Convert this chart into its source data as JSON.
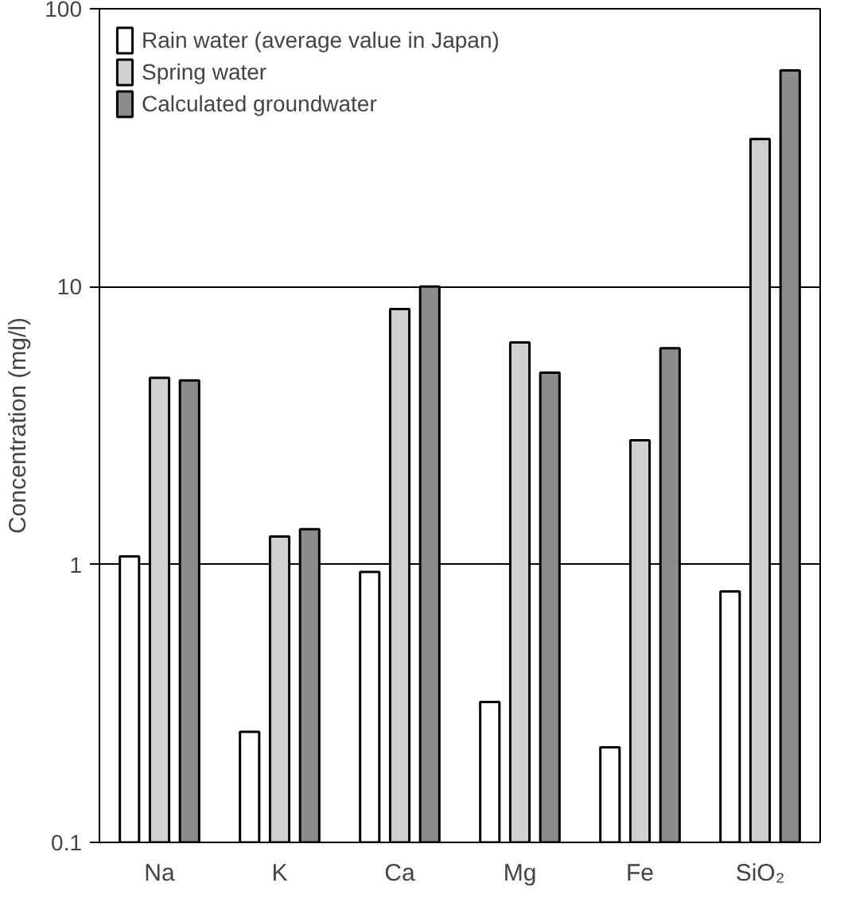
{
  "chart_data": {
    "type": "bar",
    "ylabel": "Concentration (mg/l)",
    "categories": [
      "Na",
      "K",
      "Ca",
      "Mg",
      "Fe",
      "SiO₂"
    ],
    "series": [
      {
        "name": "Rain water (average value in Japan)",
        "color": "#ffffff",
        "values": [
          1.07,
          0.25,
          0.94,
          0.32,
          0.22,
          0.8
        ]
      },
      {
        "name": "Spring water",
        "color": "#d0d0d0",
        "values": [
          4.7,
          1.26,
          8.3,
          6.3,
          2.8,
          34
        ]
      },
      {
        "name": "Calculated groundwater",
        "color": "#8c8c8c",
        "values": [
          4.6,
          1.34,
          10,
          4.9,
          6,
          60
        ]
      }
    ],
    "log": true,
    "ylim": [
      0.1,
      100
    ],
    "yticks": [
      0.1,
      1,
      10,
      100
    ],
    "grid": "y",
    "legend": "top left"
  }
}
